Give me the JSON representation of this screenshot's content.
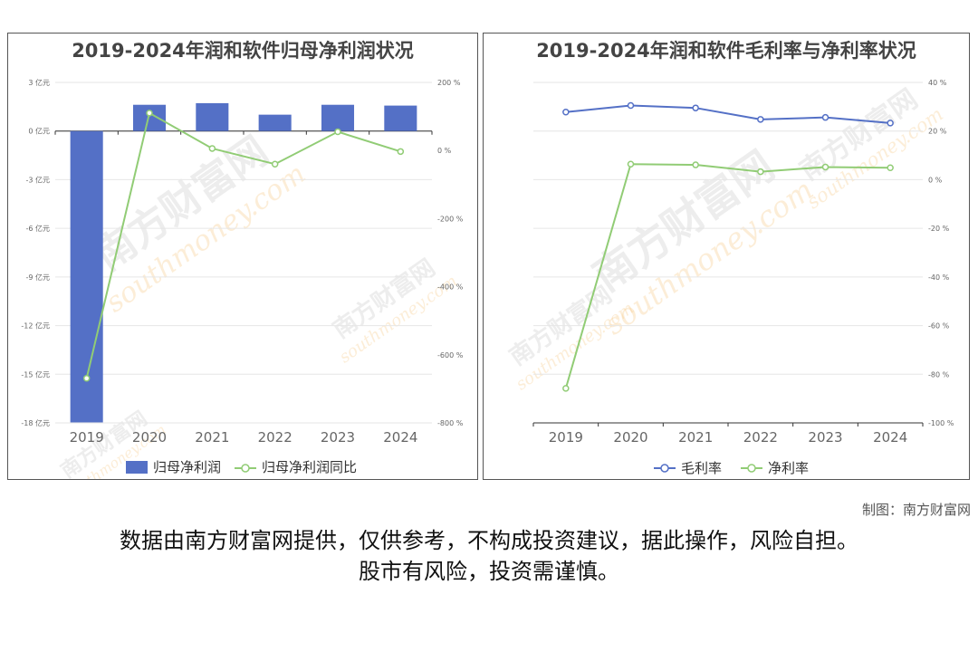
{
  "chart_data": [
    {
      "type": "bar",
      "title": "2019-2024年润和软件归母净利润状况",
      "categories": [
        "2019",
        "2020",
        "2021",
        "2022",
        "2023",
        "2024"
      ],
      "series": [
        {
          "name": "归母净利润",
          "type": "bar",
          "axis": "left",
          "values": [
            -17.97,
            1.62,
            1.72,
            1.01,
            1.62,
            1.57
          ]
        },
        {
          "name": "归母净利润同比",
          "type": "line",
          "axis": "right",
          "values": [
            -669,
            110,
            6,
            -40,
            55,
            -3
          ]
        }
      ],
      "left_axis": {
        "ticks": [
          "3 亿元",
          "0 亿元",
          "-3 亿元",
          "-6 亿元",
          "-9 亿元",
          "-12 亿元",
          "-15 亿元",
          "-18 亿元"
        ],
        "ylim": [
          -18,
          3
        ]
      },
      "right_axis": {
        "ticks": [
          "200 %",
          "0 %",
          "-200 %",
          "-400 %",
          "-600 %",
          "-800 %"
        ],
        "ylim": [
          -800,
          200
        ]
      },
      "colors": {
        "bar": "#5470c6",
        "line": "#91cc75"
      },
      "grid": true,
      "legend": "bottom"
    },
    {
      "type": "line",
      "title": "2019-2024年润和软件毛利率与净利率状况",
      "categories": [
        "2019",
        "2020",
        "2021",
        "2022",
        "2023",
        "2024"
      ],
      "series": [
        {
          "name": "毛利率",
          "values": [
            27.8,
            30.5,
            29.5,
            24.8,
            25.6,
            23.3
          ]
        },
        {
          "name": "净利率",
          "values": [
            -85.8,
            6.4,
            6.1,
            3.3,
            5.2,
            4.9
          ]
        }
      ],
      "right_axis": {
        "ticks": [
          "40 %",
          "20 %",
          "0 %",
          "-20 %",
          "-40 %",
          "-60 %",
          "-80 %",
          "-100 %"
        ],
        "ylim": [
          -100,
          40
        ]
      },
      "colors": {
        "gross": "#5470c6",
        "net": "#91cc75"
      },
      "grid": true,
      "legend": "bottom"
    }
  ],
  "watermark": {
    "text_cn": "南方财富网",
    "text_en": "southmoney.com"
  },
  "credit": "制图：南方财富网",
  "disclaimer_line1": "数据由南方财富网提供，仅供参考，不构成投资建议，据此操作，风险自担。",
  "disclaimer_line2": "股市有风险，投资需谨慎。"
}
